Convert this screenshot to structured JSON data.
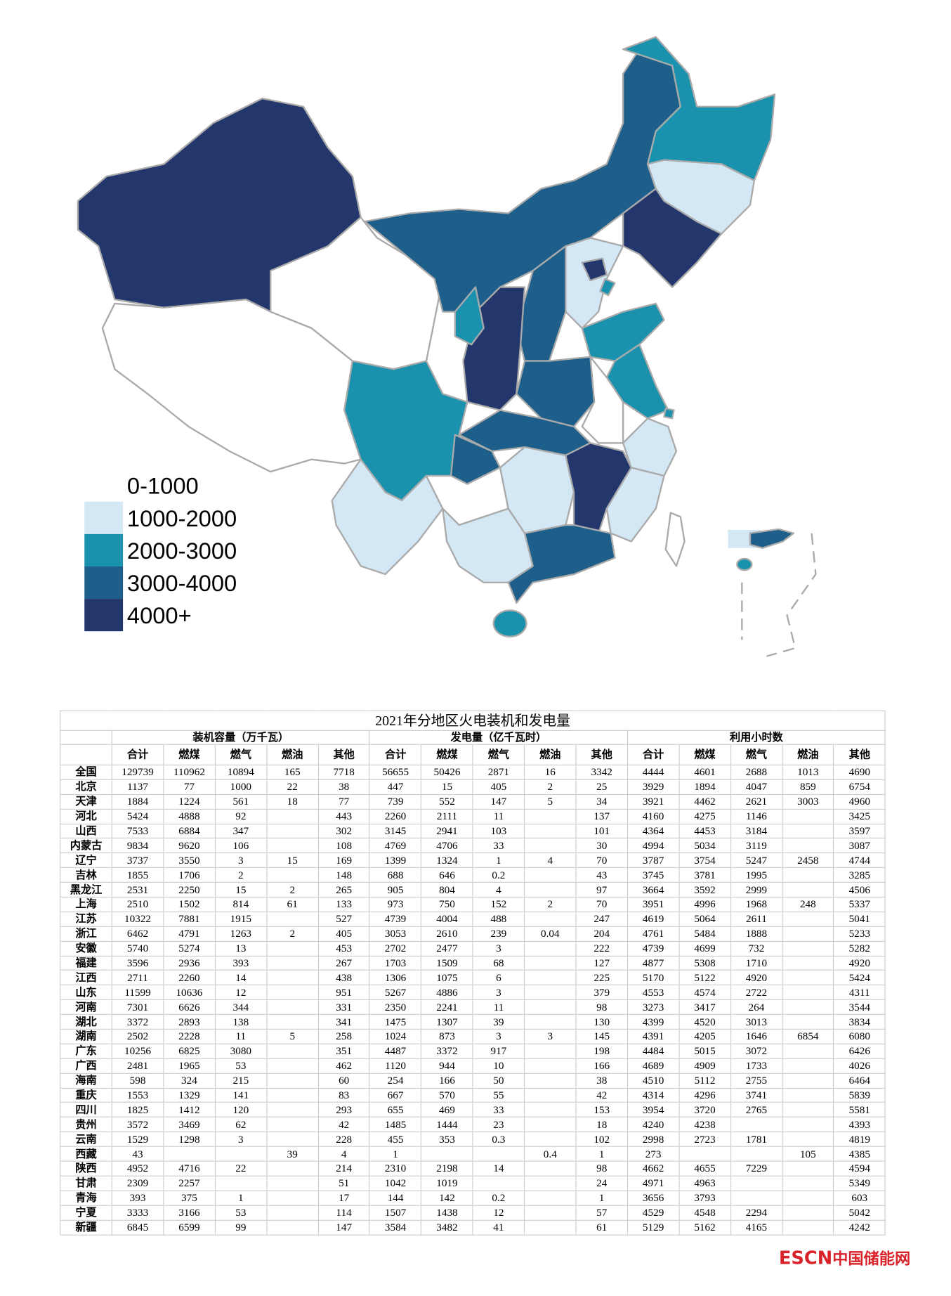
{
  "legend": [
    {
      "label": "0-1000",
      "color": "#ffffff"
    },
    {
      "label": "1000-2000",
      "color": "#d3e8f4"
    },
    {
      "label": "2000-3000",
      "color": "#1a92ad"
    },
    {
      "label": "3000-4000",
      "color": "#1d5f8a"
    },
    {
      "label": "4000+",
      "color": "#23376d"
    }
  ],
  "table": {
    "title": "2021年分地区火电装机和发电量",
    "groups": [
      "装机容量（万千瓦）",
      "发电量（亿千瓦时）",
      "利用小时数"
    ],
    "columns": [
      "合计",
      "燃煤",
      "燃气",
      "燃油",
      "其他"
    ],
    "rows": [
      {
        "region": "全国",
        "values": [
          129739,
          110962,
          10894,
          165,
          7718,
          56655,
          50426,
          2871,
          16,
          3342,
          4444,
          4601,
          2688,
          1013,
          4690
        ]
      },
      {
        "region": "北京",
        "values": [
          1137,
          77,
          1000,
          22,
          38,
          447,
          15,
          405,
          2,
          25,
          3929,
          1894,
          4047,
          859,
          6754
        ]
      },
      {
        "region": "天津",
        "values": [
          1884,
          1224,
          561,
          18,
          77,
          739,
          552,
          147,
          5,
          34,
          3921,
          4462,
          2621,
          3003,
          4960
        ]
      },
      {
        "region": "河北",
        "values": [
          5424,
          4888,
          92,
          null,
          443,
          2260,
          2111,
          11,
          null,
          137,
          4160,
          4275,
          1146,
          null,
          3425
        ]
      },
      {
        "region": "山西",
        "values": [
          7533,
          6884,
          347,
          null,
          302,
          3145,
          2941,
          103,
          null,
          101,
          4364,
          4453,
          3184,
          null,
          3597
        ]
      },
      {
        "region": "内蒙古",
        "values": [
          9834,
          9620,
          106,
          null,
          108,
          4769,
          4706,
          33,
          null,
          30,
          4994,
          5034,
          3119,
          null,
          3087
        ]
      },
      {
        "region": "辽宁",
        "values": [
          3737,
          3550,
          3,
          15,
          169,
          1399,
          1324,
          1,
          4,
          70,
          3787,
          3754,
          5247,
          2458,
          4744
        ]
      },
      {
        "region": "吉林",
        "values": [
          1855,
          1706,
          2,
          null,
          148,
          688,
          646,
          0.2,
          null,
          43,
          3745,
          3781,
          1995,
          null,
          3285
        ]
      },
      {
        "region": "黑龙江",
        "values": [
          2531,
          2250,
          15,
          2,
          265,
          905,
          804,
          4,
          null,
          97,
          3664,
          3592,
          2999,
          null,
          4506
        ]
      },
      {
        "region": "上海",
        "values": [
          2510,
          1502,
          814,
          61,
          133,
          973,
          750,
          152,
          2,
          70,
          3951,
          4996,
          1968,
          248,
          5337
        ]
      },
      {
        "region": "江苏",
        "values": [
          10322,
          7881,
          1915,
          null,
          527,
          4739,
          4004,
          488,
          null,
          247,
          4619,
          5064,
          2611,
          null,
          5041
        ]
      },
      {
        "region": "浙江",
        "values": [
          6462,
          4791,
          1263,
          2,
          405,
          3053,
          2610,
          239,
          0.04,
          204,
          4761,
          5484,
          1888,
          null,
          5233
        ]
      },
      {
        "region": "安徽",
        "values": [
          5740,
          5274,
          13,
          null,
          453,
          2702,
          2477,
          3,
          null,
          222,
          4739,
          4699,
          732,
          null,
          5282
        ]
      },
      {
        "region": "福建",
        "values": [
          3596,
          2936,
          393,
          null,
          267,
          1703,
          1509,
          68,
          null,
          127,
          4877,
          5308,
          1710,
          null,
          4920
        ]
      },
      {
        "region": "江西",
        "values": [
          2711,
          2260,
          14,
          null,
          438,
          1306,
          1075,
          6,
          null,
          225,
          5170,
          5122,
          4920,
          null,
          5424
        ]
      },
      {
        "region": "山东",
        "values": [
          11599,
          10636,
          12,
          null,
          951,
          5267,
          4886,
          3,
          null,
          379,
          4553,
          4574,
          2722,
          null,
          4311
        ]
      },
      {
        "region": "河南",
        "values": [
          7301,
          6626,
          344,
          null,
          331,
          2350,
          2241,
          11,
          null,
          98,
          3273,
          3417,
          264,
          null,
          3544
        ]
      },
      {
        "region": "湖北",
        "values": [
          3372,
          2893,
          138,
          null,
          341,
          1475,
          1307,
          39,
          null,
          130,
          4399,
          4520,
          3013,
          null,
          3834
        ]
      },
      {
        "region": "湖南",
        "values": [
          2502,
          2228,
          11,
          5,
          258,
          1024,
          873,
          3,
          3,
          145,
          4391,
          4205,
          1646,
          6854,
          6080
        ]
      },
      {
        "region": "广东",
        "values": [
          10256,
          6825,
          3080,
          null,
          351,
          4487,
          3372,
          917,
          null,
          198,
          4484,
          5015,
          3072,
          null,
          6426
        ]
      },
      {
        "region": "广西",
        "values": [
          2481,
          1965,
          53,
          null,
          462,
          1120,
          944,
          10,
          null,
          166,
          4689,
          4909,
          1733,
          null,
          4026
        ]
      },
      {
        "region": "海南",
        "values": [
          598,
          324,
          215,
          null,
          60,
          254,
          166,
          50,
          null,
          38,
          4510,
          5112,
          2755,
          null,
          6464
        ]
      },
      {
        "region": "重庆",
        "values": [
          1553,
          1329,
          141,
          null,
          83,
          667,
          570,
          55,
          null,
          42,
          4314,
          4296,
          3741,
          null,
          5839
        ]
      },
      {
        "region": "四川",
        "values": [
          1825,
          1412,
          120,
          null,
          293,
          655,
          469,
          33,
          null,
          153,
          3954,
          3720,
          2765,
          null,
          5581
        ]
      },
      {
        "region": "贵州",
        "values": [
          3572,
          3469,
          62,
          null,
          42,
          1485,
          1444,
          23,
          null,
          18,
          4240,
          4238,
          null,
          null,
          4393
        ]
      },
      {
        "region": "云南",
        "values": [
          1529,
          1298,
          3,
          null,
          228,
          455,
          353,
          0.3,
          null,
          102,
          2998,
          2723,
          1781,
          null,
          4819
        ]
      },
      {
        "region": "西藏",
        "values": [
          43,
          null,
          null,
          39,
          4,
          1,
          null,
          null,
          0.4,
          1,
          273,
          null,
          null,
          105,
          4385
        ]
      },
      {
        "region": "陕西",
        "values": [
          4952,
          4716,
          22,
          null,
          214,
          2310,
          2198,
          14,
          null,
          98,
          4662,
          4655,
          7229,
          null,
          4594
        ]
      },
      {
        "region": "甘肃",
        "values": [
          2309,
          2257,
          null,
          null,
          51,
          1042,
          1019,
          null,
          null,
          24,
          4971,
          4963,
          null,
          null,
          5349
        ]
      },
      {
        "region": "青海",
        "values": [
          393,
          375,
          1,
          null,
          17,
          144,
          142,
          0.2,
          null,
          1,
          3656,
          3793,
          null,
          null,
          603
        ]
      },
      {
        "region": "宁夏",
        "values": [
          3333,
          3166,
          53,
          null,
          114,
          1507,
          1438,
          12,
          null,
          57,
          4529,
          4548,
          2294,
          null,
          5042
        ]
      },
      {
        "region": "新疆",
        "values": [
          6845,
          6599,
          99,
          null,
          147,
          3584,
          3482,
          41,
          null,
          61,
          5129,
          5162,
          4165,
          null,
          4242
        ]
      }
    ]
  },
  "watermark": {
    "brand": "ESCN",
    "site": "中国储能网"
  }
}
